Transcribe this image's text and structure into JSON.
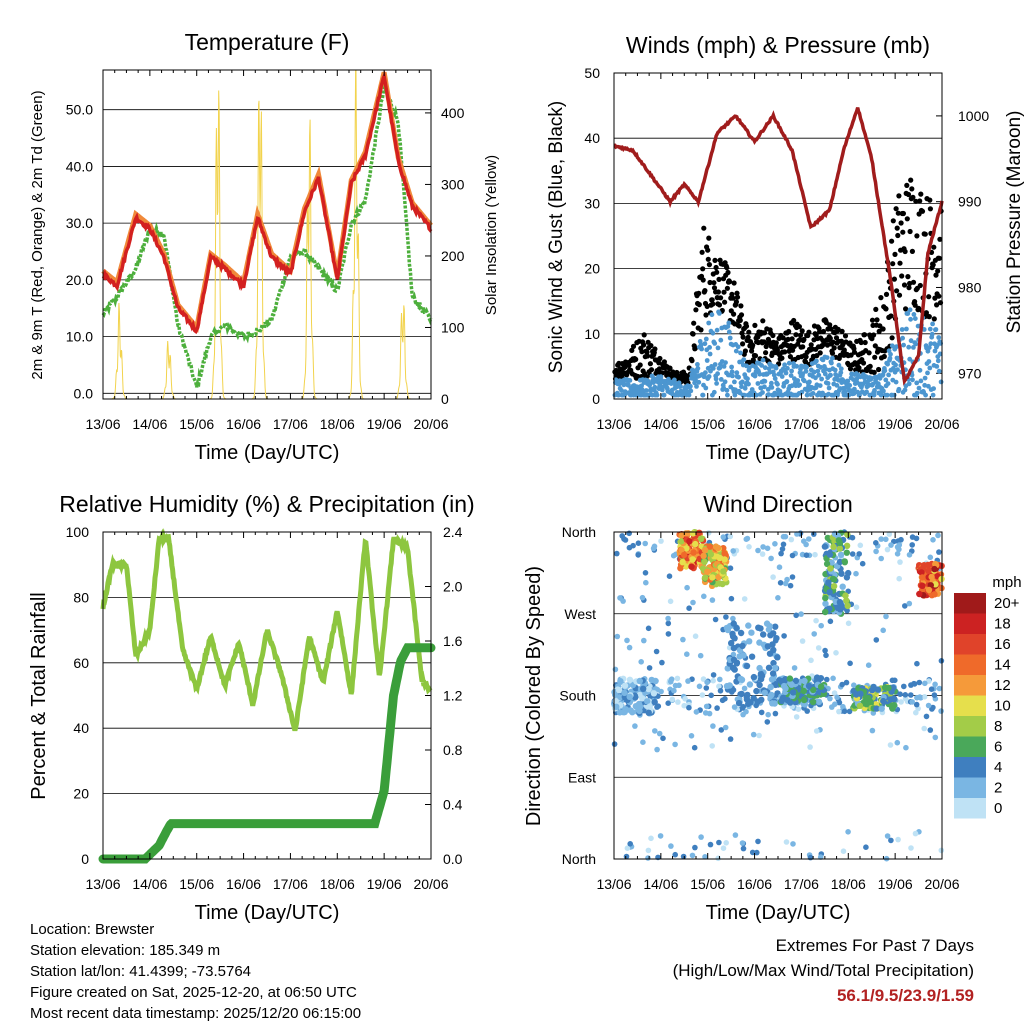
{
  "chart_data": [
    {
      "type": "line",
      "title": "Temperature (F)",
      "xlabel": "Time (Day/UTC)",
      "ylabel": "2m & 9m T (Red, Orange) & 2m Td (Green)",
      "y2label": "Solar Insolation (Yellow)",
      "x_ticks": [
        "13/06",
        "14/06",
        "15/06",
        "16/06",
        "17/06",
        "18/06",
        "19/06",
        "20/06"
      ],
      "ylim": [
        -1,
        57
      ],
      "y_ticks": [
        "0.0",
        "10.0",
        "20.0",
        "30.0",
        "40.0",
        "50.0"
      ],
      "y2lim": [
        0,
        460
      ],
      "y2_ticks": [
        "0",
        "100",
        "200",
        "300",
        "400"
      ],
      "series": [
        {
          "name": "2m T",
          "color": "#d32020",
          "x": [
            0,
            0.3,
            0.7,
            1.0,
            1.3,
            1.6,
            2.0,
            2.3,
            2.6,
            3.0,
            3.3,
            3.6,
            4.0,
            4.3,
            4.6,
            5.0,
            5.3,
            5.6,
            6.0,
            6.3,
            6.6,
            7.0
          ],
          "values": [
            21,
            19,
            31,
            29,
            24,
            15,
            11,
            24,
            22,
            19,
            31,
            24,
            21,
            32,
            38,
            20,
            37,
            42,
            56,
            41,
            33,
            29
          ]
        },
        {
          "name": "2m Td",
          "color": "#4daf3c",
          "x": [
            0,
            0.3,
            0.7,
            1.0,
            1.3,
            1.6,
            2.0,
            2.3,
            2.6,
            3.0,
            3.3,
            3.6,
            4.0,
            4.3,
            4.6,
            5.0,
            5.3,
            5.6,
            6.0,
            6.3,
            6.6,
            7.0
          ],
          "values": [
            14,
            17,
            22,
            29,
            28,
            12,
            1,
            10,
            12,
            10,
            11,
            13,
            24,
            25,
            22,
            18,
            30,
            34,
            54,
            48,
            17,
            13
          ]
        },
        {
          "name": "Solar",
          "color": "#f2d34d",
          "axis": "y2",
          "peaks": [
            [
              0.35,
              120
            ],
            [
              1.4,
              80
            ],
            [
              2.45,
              450
            ],
            [
              3.35,
              460
            ],
            [
              4.4,
              380
            ],
            [
              5.4,
              430
            ],
            [
              6.4,
              140
            ]
          ]
        }
      ]
    },
    {
      "type": "scatter",
      "title": "Winds (mph) & Pressure (mb)",
      "xlabel": "Time (Day/UTC)",
      "ylabel": "Sonic Wind & Gust (Blue, Black)",
      "y2label": "Station Pressure (Maroon)",
      "x_ticks": [
        "13/06",
        "14/06",
        "15/06",
        "16/06",
        "17/06",
        "18/06",
        "19/06",
        "20/06"
      ],
      "ylim": [
        0,
        50
      ],
      "y_ticks": [
        "0",
        "10",
        "20",
        "30",
        "40",
        "50"
      ],
      "y2lim": [
        967.0,
        1005.0
      ],
      "y2_ticks": [
        "970",
        "980",
        "990",
        "1000"
      ],
      "series": [
        {
          "name": "Pressure",
          "color": "#a01c1c",
          "x": [
            0,
            0.4,
            0.8,
            1.2,
            1.5,
            1.8,
            2.2,
            2.6,
            3.0,
            3.4,
            3.8,
            4.2,
            4.6,
            4.9,
            5.2,
            5.5,
            5.9,
            6.2,
            6.5,
            6.7,
            7.0
          ],
          "values": [
            996.5,
            996,
            993,
            990,
            992,
            990,
            998,
            1000,
            997,
            1000,
            996,
            987,
            989,
            996,
            1001,
            995,
            981,
            969,
            972,
            984,
            990
          ]
        },
        {
          "name": "Wind",
          "color": "#4c96d0",
          "envelope": [
            3,
            3,
            3,
            4,
            3,
            2,
            12,
            14,
            11,
            5,
            6,
            5,
            6,
            5,
            7,
            6,
            4,
            4,
            4,
            12,
            14,
            12,
            12
          ]
        },
        {
          "name": "Gust",
          "color": "#000000",
          "envelope": [
            5,
            7,
            10,
            7,
            4,
            4,
            26,
            22,
            18,
            10,
            12,
            9,
            12,
            10,
            12,
            11,
            8,
            10,
            16,
            30,
            34,
            30,
            30
          ]
        }
      ]
    },
    {
      "type": "line",
      "title": "Relative Humidity (%) & Precipitation (in)",
      "xlabel": "Time (Day/UTC)",
      "ylabel": "Percent & Total Rainfall",
      "x_ticks": [
        "13/06",
        "14/06",
        "15/06",
        "16/06",
        "17/06",
        "18/06",
        "19/06",
        "20/06"
      ],
      "ylim": [
        0,
        100
      ],
      "y_ticks": [
        "0",
        "20",
        "40",
        "60",
        "80",
        "100"
      ],
      "y2lim": [
        0,
        2.4
      ],
      "y2_ticks": [
        "0.0",
        "0.4",
        "0.8",
        "1.2",
        "1.6",
        "2.0",
        "2.4"
      ],
      "series": [
        {
          "name": "RH",
          "color": "#8dc63f",
          "x": [
            0,
            0.2,
            0.5,
            0.7,
            1.0,
            1.2,
            1.4,
            1.7,
            2.0,
            2.3,
            2.6,
            2.9,
            3.2,
            3.5,
            3.8,
            4.1,
            4.4,
            4.7,
            5.0,
            5.3,
            5.6,
            5.9,
            6.2,
            6.5,
            6.8,
            7.0
          ],
          "values": [
            77,
            90,
            90,
            62,
            70,
            98,
            98,
            64,
            52,
            68,
            53,
            66,
            47,
            70,
            57,
            39,
            68,
            54,
            76,
            50,
            98,
            55,
            98,
            95,
            55,
            51
          ]
        },
        {
          "name": "Precip",
          "color": "#3a9e3a",
          "axis": "y2",
          "x": [
            0,
            0.9,
            1.2,
            1.35,
            1.45,
            2.5,
            4.0,
            5.0,
            5.8,
            6.0,
            6.2,
            6.35,
            6.5,
            7.0
          ],
          "values": [
            0,
            0,
            0.1,
            0.2,
            0.26,
            0.26,
            0.26,
            0.26,
            0.26,
            0.5,
            1.2,
            1.45,
            1.55,
            1.55
          ]
        }
      ]
    },
    {
      "type": "scatter",
      "title": "Wind Direction",
      "xlabel": "Time (Day/UTC)",
      "ylabel": "Direction (Colored By Speed)",
      "x_ticks": [
        "13/06",
        "14/06",
        "15/06",
        "16/06",
        "17/06",
        "18/06",
        "19/06",
        "20/06"
      ],
      "y_ticks": [
        "North",
        "East",
        "South",
        "West",
        "North"
      ],
      "legend_title": "mph",
      "legend_labels": [
        "20+",
        "18",
        "16",
        "14",
        "12",
        "10",
        "8",
        "6",
        "4",
        "2",
        "0"
      ],
      "legend_colors": [
        "#a01a1a",
        "#cc2222",
        "#e0432a",
        "#ef6a2a",
        "#f59a3a",
        "#e6df4c",
        "#a3cc48",
        "#4aa85a",
        "#3f7fbf",
        "#7ab6e3",
        "#bfe2f5"
      ],
      "clusters": [
        {
          "x": [
            0,
            0.9
          ],
          "dir": [
            160,
            200
          ],
          "speed": [
            0,
            4
          ]
        },
        {
          "x": [
            1.4,
            1.9
          ],
          "dir": [
            320,
            360
          ],
          "speed": [
            8,
            18
          ]
        },
        {
          "x": [
            1.9,
            2.4
          ],
          "dir": [
            300,
            345
          ],
          "speed": [
            6,
            14
          ]
        },
        {
          "x": [
            2.4,
            3.5
          ],
          "dir": [
            170,
            260
          ],
          "speed": [
            2,
            5
          ]
        },
        {
          "x": [
            3.5,
            4.5
          ],
          "dir": [
            170,
            200
          ],
          "speed": [
            2,
            6
          ]
        },
        {
          "x": [
            4.5,
            5.0
          ],
          "dir": [
            270,
            360
          ],
          "speed": [
            2,
            8
          ]
        },
        {
          "x": [
            5.1,
            6.0
          ],
          "dir": [
            165,
            190
          ],
          "speed": [
            2,
            10
          ]
        },
        {
          "x": [
            6.5,
            7.0
          ],
          "dir": [
            290,
            325
          ],
          "speed": [
            10,
            20
          ]
        }
      ]
    }
  ],
  "footer": {
    "location": "Location: Brewster",
    "elevation": "Station elevation: 185.349 m",
    "latlon": "Station lat/lon: 41.4399; -73.5764",
    "created": "Figure created on Sat, 2025-12-20, at 06:50 UTC",
    "recent": "Most recent data timestamp: 2025/12/20 06:15:00"
  },
  "extremes": {
    "title": "Extremes For Past 7 Days",
    "subtitle": "(High/Low/Max Wind/Total Precipitation)",
    "values": "56.1/9.5/23.9/1.59"
  }
}
